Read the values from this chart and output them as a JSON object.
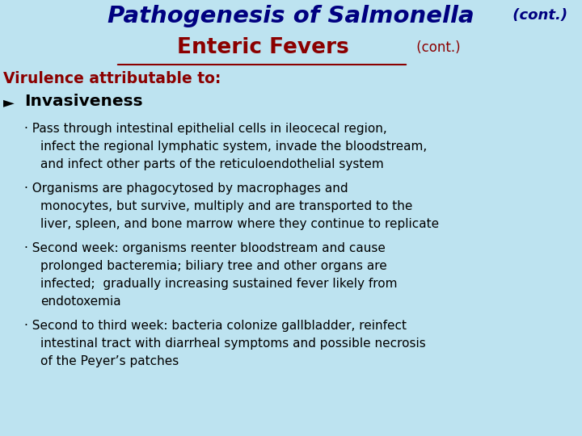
{
  "bg_color": "#bde3f0",
  "title1_main": "Pathogenesis of Salmonella",
  "title1_cont": " (cont.)",
  "title1_color": "#000080",
  "title2_main": "Enteric Fevers",
  "title2_cont": " (cont.)",
  "title2_color": "#8B0000",
  "virulence_text": "Virulence attributable to:",
  "virulence_color": "#8B0000",
  "invasiveness_text": "Invasiveness",
  "bullet_lines": [
    "· Pass through intestinal epithelial cells in ileocecal region,",
    "infect the regional lymphatic system, invade the bloodstream,",
    "and infect other parts of the reticuloendothelial system",
    "· Organisms are phagocytosed by macrophages and",
    "monocytes, but survive, multiply and are transported to the",
    "liver, spleen, and bone marrow where they continue to replicate",
    "· Second week: organisms reenter bloodstream and cause",
    "prolonged bacteremia; biliary tree and other organs are",
    "infected;  gradually increasing sustained fever likely from",
    "endotoxemia",
    "· Second to third week: bacteria colonize gallbladder, reinfect",
    "intestinal tract with diarrheal symptoms and possible necrosis",
    "of the Peyer’s patches"
  ],
  "figw": 7.2,
  "figh": 5.4,
  "dpi": 100
}
